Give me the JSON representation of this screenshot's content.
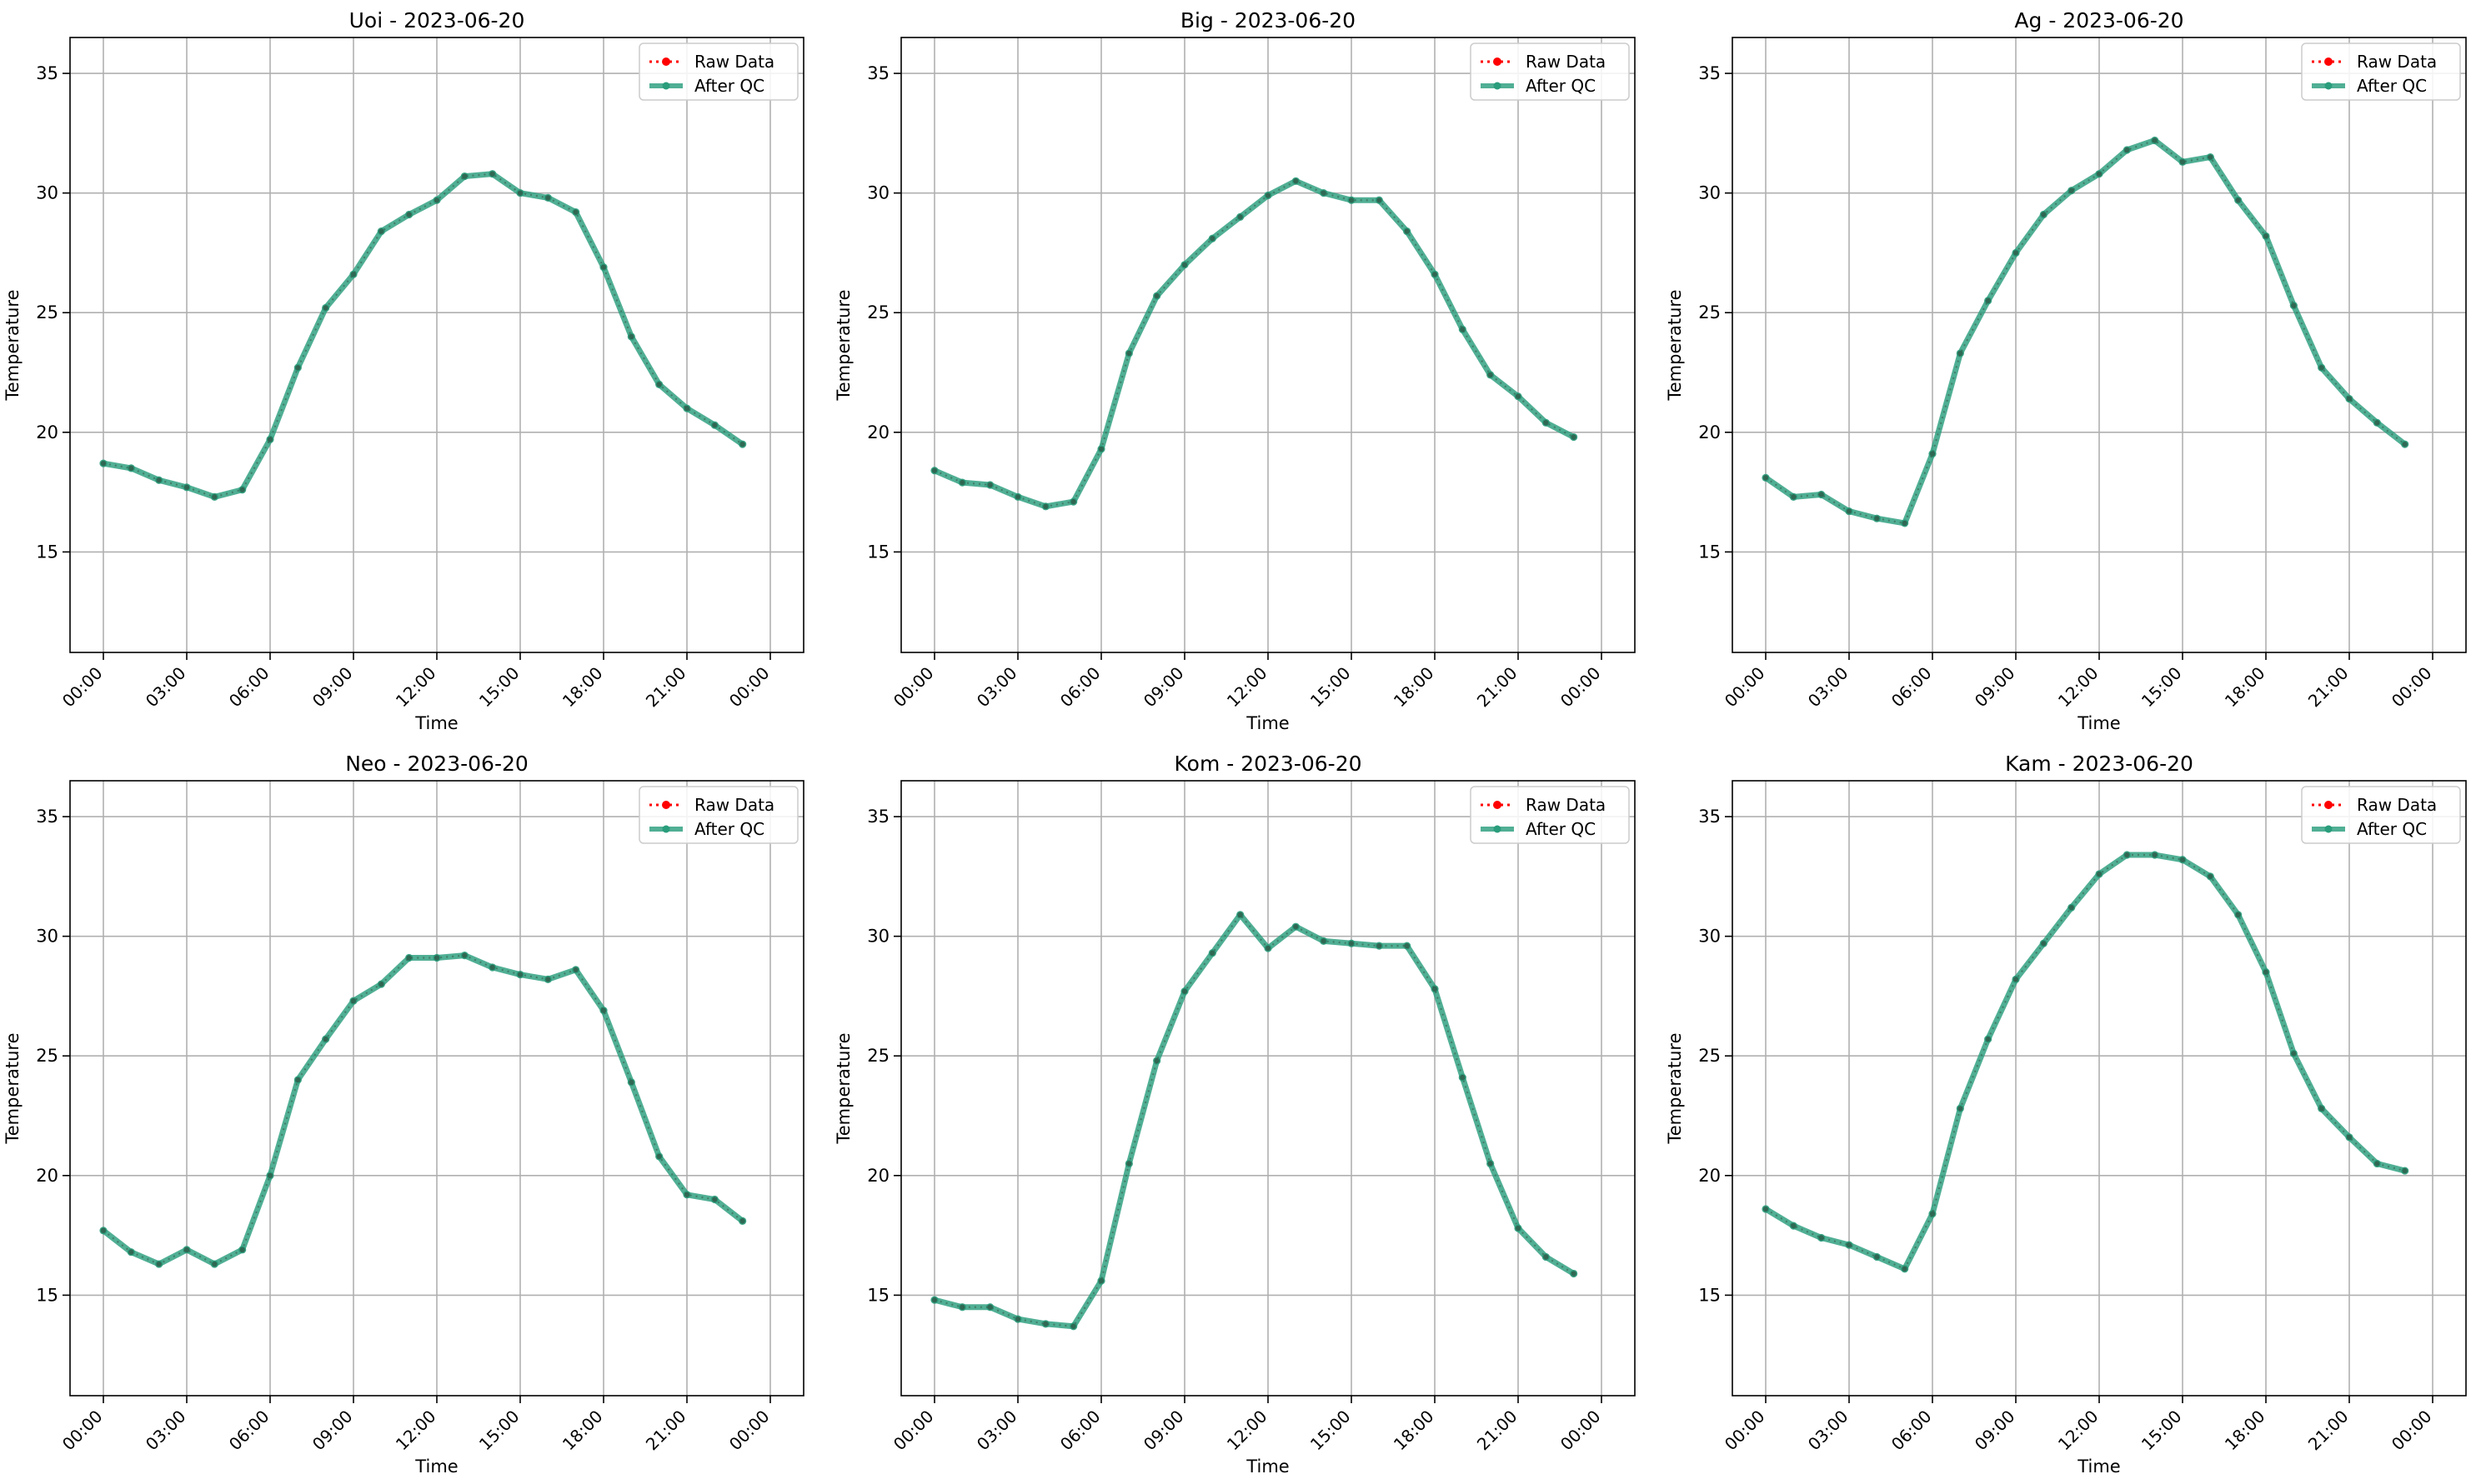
{
  "chart_data": [
    {
      "type": "line",
      "title": "Uoi - 2023-06-20",
      "xlabel": "Time",
      "ylabel": "Temperature",
      "x": [
        "00:00",
        "01:00",
        "02:00",
        "03:00",
        "04:00",
        "05:00",
        "06:00",
        "07:00",
        "08:00",
        "09:00",
        "10:00",
        "11:00",
        "12:00",
        "13:00",
        "14:00",
        "15:00",
        "16:00",
        "17:00",
        "18:00",
        "19:00",
        "20:00",
        "21:00",
        "22:00",
        "23:00"
      ],
      "xticks": [
        "00:00",
        "03:00",
        "06:00",
        "09:00",
        "12:00",
        "15:00",
        "18:00",
        "21:00",
        "00:00"
      ],
      "yticks": [
        15,
        20,
        25,
        30,
        35
      ],
      "ylim": [
        10.8,
        36.5
      ],
      "grid": true,
      "legend": "top-right",
      "series": [
        {
          "name": "Raw Data",
          "color": "#ff0000",
          "style": "dotted",
          "values": [
            18.7,
            18.5,
            18.0,
            17.7,
            17.3,
            17.6,
            19.7,
            22.7,
            25.2,
            26.6,
            28.4,
            29.1,
            29.7,
            30.7,
            30.8,
            30.0,
            29.8,
            29.2,
            26.9,
            24.0,
            22.0,
            21.0,
            20.3,
            19.5
          ]
        },
        {
          "name": "After QC",
          "color": "#2a9d7c",
          "style": "solid",
          "values": [
            18.7,
            18.5,
            18.0,
            17.7,
            17.3,
            17.6,
            19.7,
            22.7,
            25.2,
            26.6,
            28.4,
            29.1,
            29.7,
            30.7,
            30.8,
            30.0,
            29.8,
            29.2,
            26.9,
            24.0,
            22.0,
            21.0,
            20.3,
            19.5
          ]
        }
      ]
    },
    {
      "type": "line",
      "title": "Big - 2023-06-20",
      "xlabel": "Time",
      "ylabel": "Temperature",
      "x": [
        "00:00",
        "01:00",
        "02:00",
        "03:00",
        "04:00",
        "05:00",
        "06:00",
        "07:00",
        "08:00",
        "09:00",
        "10:00",
        "11:00",
        "12:00",
        "13:00",
        "14:00",
        "15:00",
        "16:00",
        "17:00",
        "18:00",
        "19:00",
        "20:00",
        "21:00",
        "22:00",
        "23:00"
      ],
      "xticks": [
        "00:00",
        "03:00",
        "06:00",
        "09:00",
        "12:00",
        "15:00",
        "18:00",
        "21:00",
        "00:00"
      ],
      "yticks": [
        15,
        20,
        25,
        30,
        35
      ],
      "ylim": [
        10.8,
        36.5
      ],
      "grid": true,
      "legend": "top-right",
      "series": [
        {
          "name": "Raw Data",
          "color": "#ff0000",
          "style": "dotted",
          "values": [
            18.4,
            17.9,
            17.8,
            17.3,
            16.9,
            17.1,
            19.3,
            23.3,
            25.7,
            27.0,
            28.1,
            29.0,
            29.9,
            30.5,
            30.0,
            29.7,
            29.7,
            28.4,
            26.6,
            24.3,
            22.4,
            21.5,
            20.4,
            19.8
          ]
        },
        {
          "name": "After QC",
          "color": "#2a9d7c",
          "style": "solid",
          "values": [
            18.4,
            17.9,
            17.8,
            17.3,
            16.9,
            17.1,
            19.3,
            23.3,
            25.7,
            27.0,
            28.1,
            29.0,
            29.9,
            30.5,
            30.0,
            29.7,
            29.7,
            28.4,
            26.6,
            24.3,
            22.4,
            21.5,
            20.4,
            19.8
          ]
        }
      ]
    },
    {
      "type": "line",
      "title": "Ag - 2023-06-20",
      "xlabel": "Time",
      "ylabel": "Temperature",
      "x": [
        "00:00",
        "01:00",
        "02:00",
        "03:00",
        "04:00",
        "05:00",
        "06:00",
        "07:00",
        "08:00",
        "09:00",
        "10:00",
        "11:00",
        "12:00",
        "13:00",
        "14:00",
        "15:00",
        "16:00",
        "17:00",
        "18:00",
        "19:00",
        "20:00",
        "21:00",
        "22:00",
        "23:00"
      ],
      "xticks": [
        "00:00",
        "03:00",
        "06:00",
        "09:00",
        "12:00",
        "15:00",
        "18:00",
        "21:00",
        "00:00"
      ],
      "yticks": [
        15,
        20,
        25,
        30,
        35
      ],
      "ylim": [
        10.8,
        36.5
      ],
      "grid": true,
      "legend": "top-right",
      "series": [
        {
          "name": "Raw Data",
          "color": "#ff0000",
          "style": "dotted",
          "values": [
            18.1,
            17.3,
            17.4,
            16.7,
            16.4,
            16.2,
            19.1,
            23.3,
            25.5,
            27.5,
            29.1,
            30.1,
            30.8,
            31.8,
            32.2,
            31.3,
            31.5,
            29.7,
            28.2,
            25.3,
            22.7,
            21.4,
            20.4,
            19.5
          ]
        },
        {
          "name": "After QC",
          "color": "#2a9d7c",
          "style": "solid",
          "values": [
            18.1,
            17.3,
            17.4,
            16.7,
            16.4,
            16.2,
            19.1,
            23.3,
            25.5,
            27.5,
            29.1,
            30.1,
            30.8,
            31.8,
            32.2,
            31.3,
            31.5,
            29.7,
            28.2,
            25.3,
            22.7,
            21.4,
            20.4,
            19.5
          ]
        }
      ]
    },
    {
      "type": "line",
      "title": "Neo - 2023-06-20",
      "xlabel": "Time",
      "ylabel": "Temperature",
      "x": [
        "00:00",
        "01:00",
        "02:00",
        "03:00",
        "04:00",
        "05:00",
        "06:00",
        "07:00",
        "08:00",
        "09:00",
        "10:00",
        "11:00",
        "12:00",
        "13:00",
        "14:00",
        "15:00",
        "16:00",
        "17:00",
        "18:00",
        "19:00",
        "20:00",
        "21:00",
        "22:00",
        "23:00"
      ],
      "xticks": [
        "00:00",
        "03:00",
        "06:00",
        "09:00",
        "12:00",
        "15:00",
        "18:00",
        "21:00",
        "00:00"
      ],
      "yticks": [
        15,
        20,
        25,
        30,
        35
      ],
      "ylim": [
        10.8,
        36.5
      ],
      "grid": true,
      "legend": "top-right",
      "series": [
        {
          "name": "Raw Data",
          "color": "#ff0000",
          "style": "dotted",
          "values": [
            17.7,
            16.8,
            16.3,
            16.9,
            16.3,
            16.9,
            20.0,
            24.0,
            25.7,
            27.3,
            28.0,
            29.1,
            29.1,
            29.2,
            28.7,
            28.4,
            28.2,
            28.6,
            26.9,
            23.9,
            20.8,
            19.2,
            19.0,
            18.1
          ]
        },
        {
          "name": "After QC",
          "color": "#2a9d7c",
          "style": "solid",
          "values": [
            17.7,
            16.8,
            16.3,
            16.9,
            16.3,
            16.9,
            20.0,
            24.0,
            25.7,
            27.3,
            28.0,
            29.1,
            29.1,
            29.2,
            28.7,
            28.4,
            28.2,
            28.6,
            26.9,
            23.9,
            20.8,
            19.2,
            19.0,
            18.1
          ]
        }
      ]
    },
    {
      "type": "line",
      "title": "Kom - 2023-06-20",
      "xlabel": "Time",
      "ylabel": "Temperature",
      "x": [
        "00:00",
        "01:00",
        "02:00",
        "03:00",
        "04:00",
        "05:00",
        "06:00",
        "07:00",
        "08:00",
        "09:00",
        "10:00",
        "11:00",
        "12:00",
        "13:00",
        "14:00",
        "15:00",
        "16:00",
        "17:00",
        "18:00",
        "19:00",
        "20:00",
        "21:00",
        "22:00",
        "23:00"
      ],
      "xticks": [
        "00:00",
        "03:00",
        "06:00",
        "09:00",
        "12:00",
        "15:00",
        "18:00",
        "21:00",
        "00:00"
      ],
      "yticks": [
        15,
        20,
        25,
        30,
        35
      ],
      "ylim": [
        10.8,
        36.5
      ],
      "grid": true,
      "legend": "top-right",
      "series": [
        {
          "name": "Raw Data",
          "color": "#ff0000",
          "style": "dotted",
          "values": [
            14.8,
            14.5,
            14.5,
            14.0,
            13.8,
            13.7,
            15.6,
            20.5,
            24.8,
            27.7,
            29.3,
            30.9,
            29.5,
            30.4,
            29.8,
            29.7,
            29.6,
            29.6,
            27.8,
            24.1,
            20.5,
            17.8,
            16.6,
            15.9
          ]
        },
        {
          "name": "After QC",
          "color": "#2a9d7c",
          "style": "solid",
          "values": [
            14.8,
            14.5,
            14.5,
            14.0,
            13.8,
            13.7,
            15.6,
            20.5,
            24.8,
            27.7,
            29.3,
            30.9,
            29.5,
            30.4,
            29.8,
            29.7,
            29.6,
            29.6,
            27.8,
            24.1,
            20.5,
            17.8,
            16.6,
            15.9
          ]
        }
      ]
    },
    {
      "type": "line",
      "title": "Kam - 2023-06-20",
      "xlabel": "Time",
      "ylabel": "Temperature",
      "x": [
        "00:00",
        "01:00",
        "02:00",
        "03:00",
        "04:00",
        "05:00",
        "06:00",
        "07:00",
        "08:00",
        "09:00",
        "10:00",
        "11:00",
        "12:00",
        "13:00",
        "14:00",
        "15:00",
        "16:00",
        "17:00",
        "18:00",
        "19:00",
        "20:00",
        "21:00",
        "22:00",
        "23:00"
      ],
      "xticks": [
        "00:00",
        "03:00",
        "06:00",
        "09:00",
        "12:00",
        "15:00",
        "18:00",
        "21:00",
        "00:00"
      ],
      "yticks": [
        15,
        20,
        25,
        30,
        35
      ],
      "ylim": [
        10.8,
        36.5
      ],
      "grid": true,
      "legend": "top-right",
      "series": [
        {
          "name": "Raw Data",
          "color": "#ff0000",
          "style": "dotted",
          "values": [
            18.6,
            17.9,
            17.4,
            17.1,
            16.6,
            16.1,
            18.4,
            22.8,
            25.7,
            28.2,
            29.7,
            31.2,
            32.6,
            33.4,
            33.4,
            33.2,
            32.5,
            30.9,
            28.5,
            25.1,
            22.8,
            21.6,
            20.5,
            20.2
          ]
        },
        {
          "name": "After QC",
          "color": "#2a9d7c",
          "style": "solid",
          "values": [
            18.6,
            17.9,
            17.4,
            17.1,
            16.6,
            16.1,
            18.4,
            22.8,
            25.7,
            28.2,
            29.7,
            31.2,
            32.6,
            33.4,
            33.4,
            33.2,
            32.5,
            30.9,
            28.5,
            25.1,
            22.8,
            21.6,
            20.5,
            20.2
          ]
        }
      ]
    }
  ]
}
